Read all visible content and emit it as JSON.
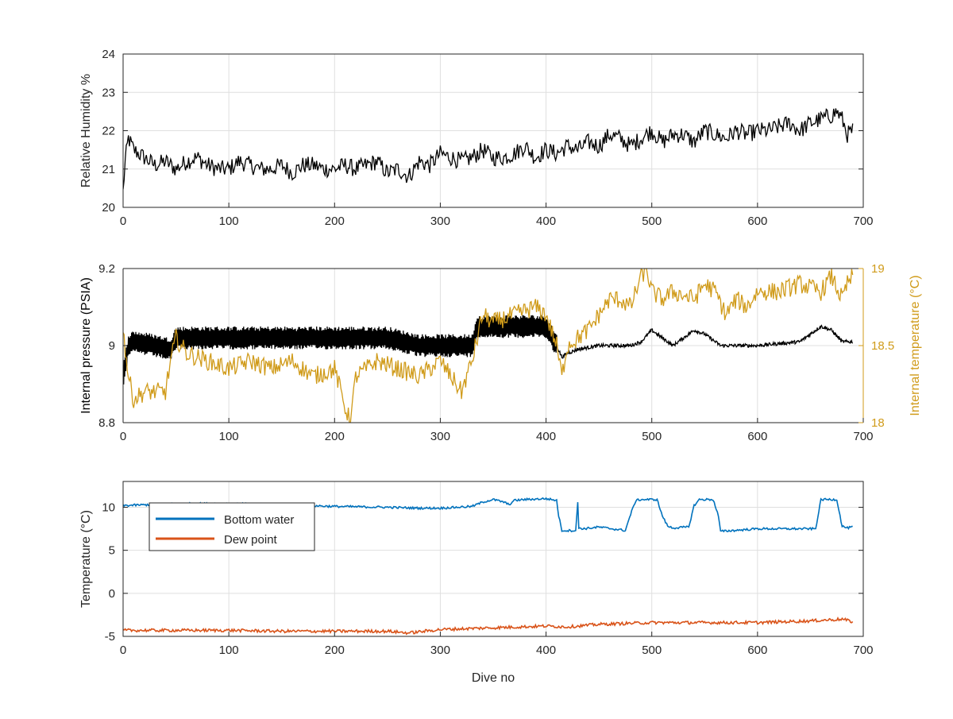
{
  "colors": {
    "black_series": "#000000",
    "internal_temperature": "#D09B1A",
    "bottom_water": "#0072BD",
    "dew_point": "#D95319",
    "grid": "#DFDFDF",
    "axis": "#262626"
  },
  "chart_data": [
    {
      "type": "line",
      "ylabel": "Relative Humidity %",
      "xlim": [
        0,
        700
      ],
      "ylim": [
        20,
        24
      ],
      "xticks": [
        0,
        100,
        200,
        300,
        400,
        500,
        600,
        700
      ],
      "yticks": [
        20,
        21,
        22,
        23,
        24
      ],
      "grid": true,
      "series": [
        {
          "color": "#000000",
          "x": [
            0,
            2,
            5,
            10,
            20,
            30,
            40,
            50,
            60,
            70,
            80,
            90,
            100,
            110,
            120,
            130,
            140,
            150,
            160,
            170,
            180,
            190,
            200,
            210,
            220,
            230,
            240,
            250,
            260,
            270,
            280,
            290,
            300,
            310,
            320,
            330,
            340,
            350,
            360,
            370,
            380,
            390,
            400,
            410,
            420,
            430,
            440,
            450,
            460,
            470,
            480,
            490,
            500,
            510,
            520,
            530,
            540,
            550,
            560,
            570,
            580,
            590,
            600,
            610,
            620,
            630,
            640,
            650,
            660,
            670,
            675,
            680,
            685,
            690
          ],
          "y": [
            20.4,
            21.2,
            21.8,
            21.5,
            21.3,
            21.1,
            21.2,
            21.0,
            21.2,
            21.3,
            21.1,
            21.0,
            21.0,
            21.2,
            21.1,
            21.0,
            21.0,
            21.1,
            20.9,
            21.1,
            21.1,
            21.0,
            21.0,
            21.1,
            21.0,
            21.1,
            21.2,
            20.9,
            21.0,
            20.8,
            21.2,
            21.1,
            21.4,
            21.3,
            21.2,
            21.3,
            21.5,
            21.3,
            21.3,
            21.4,
            21.6,
            21.3,
            21.5,
            21.4,
            21.6,
            21.5,
            21.7,
            21.6,
            21.9,
            21.8,
            21.6,
            21.8,
            22.0,
            21.7,
            21.9,
            21.9,
            21.7,
            22.0,
            21.9,
            21.8,
            22.0,
            21.9,
            22.0,
            22.0,
            22.1,
            22.2,
            22.0,
            22.2,
            22.3,
            22.4,
            22.5,
            22.3,
            21.9,
            22.0
          ],
          "noise": 0.45
        }
      ]
    },
    {
      "type": "line",
      "ylabel": "Internal pressure (PSIA)",
      "y2label": "Internal temperature (°C)",
      "xlim": [
        0,
        700
      ],
      "ylim": [
        8.8,
        9.2
      ],
      "y2lim": [
        18,
        19
      ],
      "xticks": [
        0,
        100,
        200,
        300,
        400,
        500,
        600,
        700
      ],
      "yticks": [
        8.8,
        9,
        9.2
      ],
      "y2ticks": [
        18,
        18.5,
        19
      ],
      "grid": true,
      "series": [
        {
          "axis": "left",
          "color": "#000000",
          "x": [
            0,
            5,
            10,
            30,
            45,
            50,
            70,
            100,
            150,
            200,
            250,
            280,
            300,
            330,
            335,
            360,
            400,
            410,
            415,
            420,
            430,
            450,
            480,
            490,
            500,
            510,
            520,
            540,
            550,
            560,
            565,
            600,
            640,
            660,
            670,
            680,
            685,
            690
          ],
          "y": [
            8.92,
            9.0,
            9.01,
            9.0,
            8.99,
            9.02,
            9.02,
            9.02,
            9.02,
            9.02,
            9.02,
            9.0,
            9.0,
            9.0,
            9.05,
            9.05,
            9.05,
            9.0,
            8.97,
            8.98,
            8.99,
            9.0,
            9.0,
            9.01,
            9.04,
            9.02,
            9.0,
            9.04,
            9.03,
            9.01,
            9.0,
            9.0,
            9.01,
            9.05,
            9.04,
            9.01,
            9.01,
            9.01
          ],
          "noise": 0.06,
          "noise_until": 410
        },
        {
          "axis": "right",
          "color": "#D09B1A",
          "x": [
            0,
            5,
            10,
            20,
            40,
            45,
            50,
            60,
            80,
            100,
            120,
            140,
            160,
            180,
            200,
            210,
            215,
            220,
            240,
            260,
            280,
            300,
            310,
            320,
            330,
            340,
            350,
            370,
            390,
            400,
            410,
            415,
            420,
            430,
            440,
            450,
            460,
            470,
            480,
            490,
            495,
            500,
            510,
            520,
            540,
            550,
            560,
            570,
            580,
            590,
            600,
            620,
            640,
            660,
            670,
            680,
            685,
            690
          ],
          "y": [
            18.6,
            18.3,
            18.15,
            18.2,
            18.2,
            18.4,
            18.55,
            18.45,
            18.4,
            18.35,
            18.4,
            18.35,
            18.4,
            18.3,
            18.35,
            18.1,
            18.0,
            18.3,
            18.4,
            18.35,
            18.3,
            18.4,
            18.3,
            18.2,
            18.4,
            18.7,
            18.65,
            18.7,
            18.75,
            18.7,
            18.5,
            18.3,
            18.5,
            18.55,
            18.6,
            18.7,
            18.8,
            18.8,
            18.75,
            18.95,
            19.0,
            18.85,
            18.8,
            18.85,
            18.8,
            18.9,
            18.85,
            18.7,
            18.8,
            18.75,
            18.85,
            18.85,
            18.9,
            18.85,
            18.95,
            18.8,
            18.9,
            18.95
          ],
          "noise": 0.12
        }
      ]
    },
    {
      "type": "line",
      "xlabel": "Dive no",
      "ylabel": "Temperature (°C)",
      "xlim": [
        0,
        700
      ],
      "ylim": [
        -5,
        13
      ],
      "xticks": [
        0,
        100,
        200,
        300,
        400,
        500,
        600,
        700
      ],
      "yticks": [
        -5,
        0,
        5,
        10
      ],
      "grid": true,
      "legend": "top-left",
      "series": [
        {
          "name": "Bottom water",
          "color": "#0072BD",
          "x": [
            0,
            50,
            100,
            150,
            200,
            250,
            280,
            300,
            330,
            340,
            350,
            360,
            365,
            370,
            380,
            400,
            410,
            412,
            415,
            420,
            428,
            430,
            431,
            432,
            435,
            450,
            475,
            480,
            485,
            490,
            500,
            505,
            510,
            515,
            520,
            535,
            540,
            545,
            550,
            558,
            563,
            565,
            600,
            650,
            655,
            660,
            665,
            675,
            680,
            685,
            690
          ],
          "y": [
            10.2,
            10.4,
            10.4,
            10.3,
            10.1,
            10.0,
            9.9,
            9.9,
            10.1,
            10.6,
            10.9,
            10.6,
            10.3,
            10.8,
            10.9,
            11.0,
            10.8,
            9.0,
            7.3,
            7.3,
            7.3,
            10.5,
            7.6,
            7.6,
            7.5,
            7.7,
            7.3,
            9.2,
            10.8,
            10.9,
            10.9,
            10.9,
            9.0,
            7.8,
            7.6,
            7.7,
            10.2,
            10.9,
            10.9,
            10.9,
            9.0,
            7.2,
            7.5,
            7.5,
            7.5,
            10.9,
            10.9,
            10.9,
            7.8,
            7.6,
            7.7
          ],
          "noise": 0.25
        },
        {
          "name": "Dew point",
          "color": "#D95319",
          "x": [
            0,
            50,
            100,
            150,
            200,
            250,
            270,
            300,
            350,
            400,
            420,
            450,
            500,
            550,
            600,
            650,
            680,
            690
          ],
          "y": [
            -4.3,
            -4.3,
            -4.3,
            -4.4,
            -4.4,
            -4.4,
            -4.6,
            -4.2,
            -4.0,
            -3.8,
            -3.9,
            -3.6,
            -3.4,
            -3.4,
            -3.4,
            -3.2,
            -3.0,
            -3.3
          ],
          "noise": 0.35
        }
      ]
    }
  ]
}
